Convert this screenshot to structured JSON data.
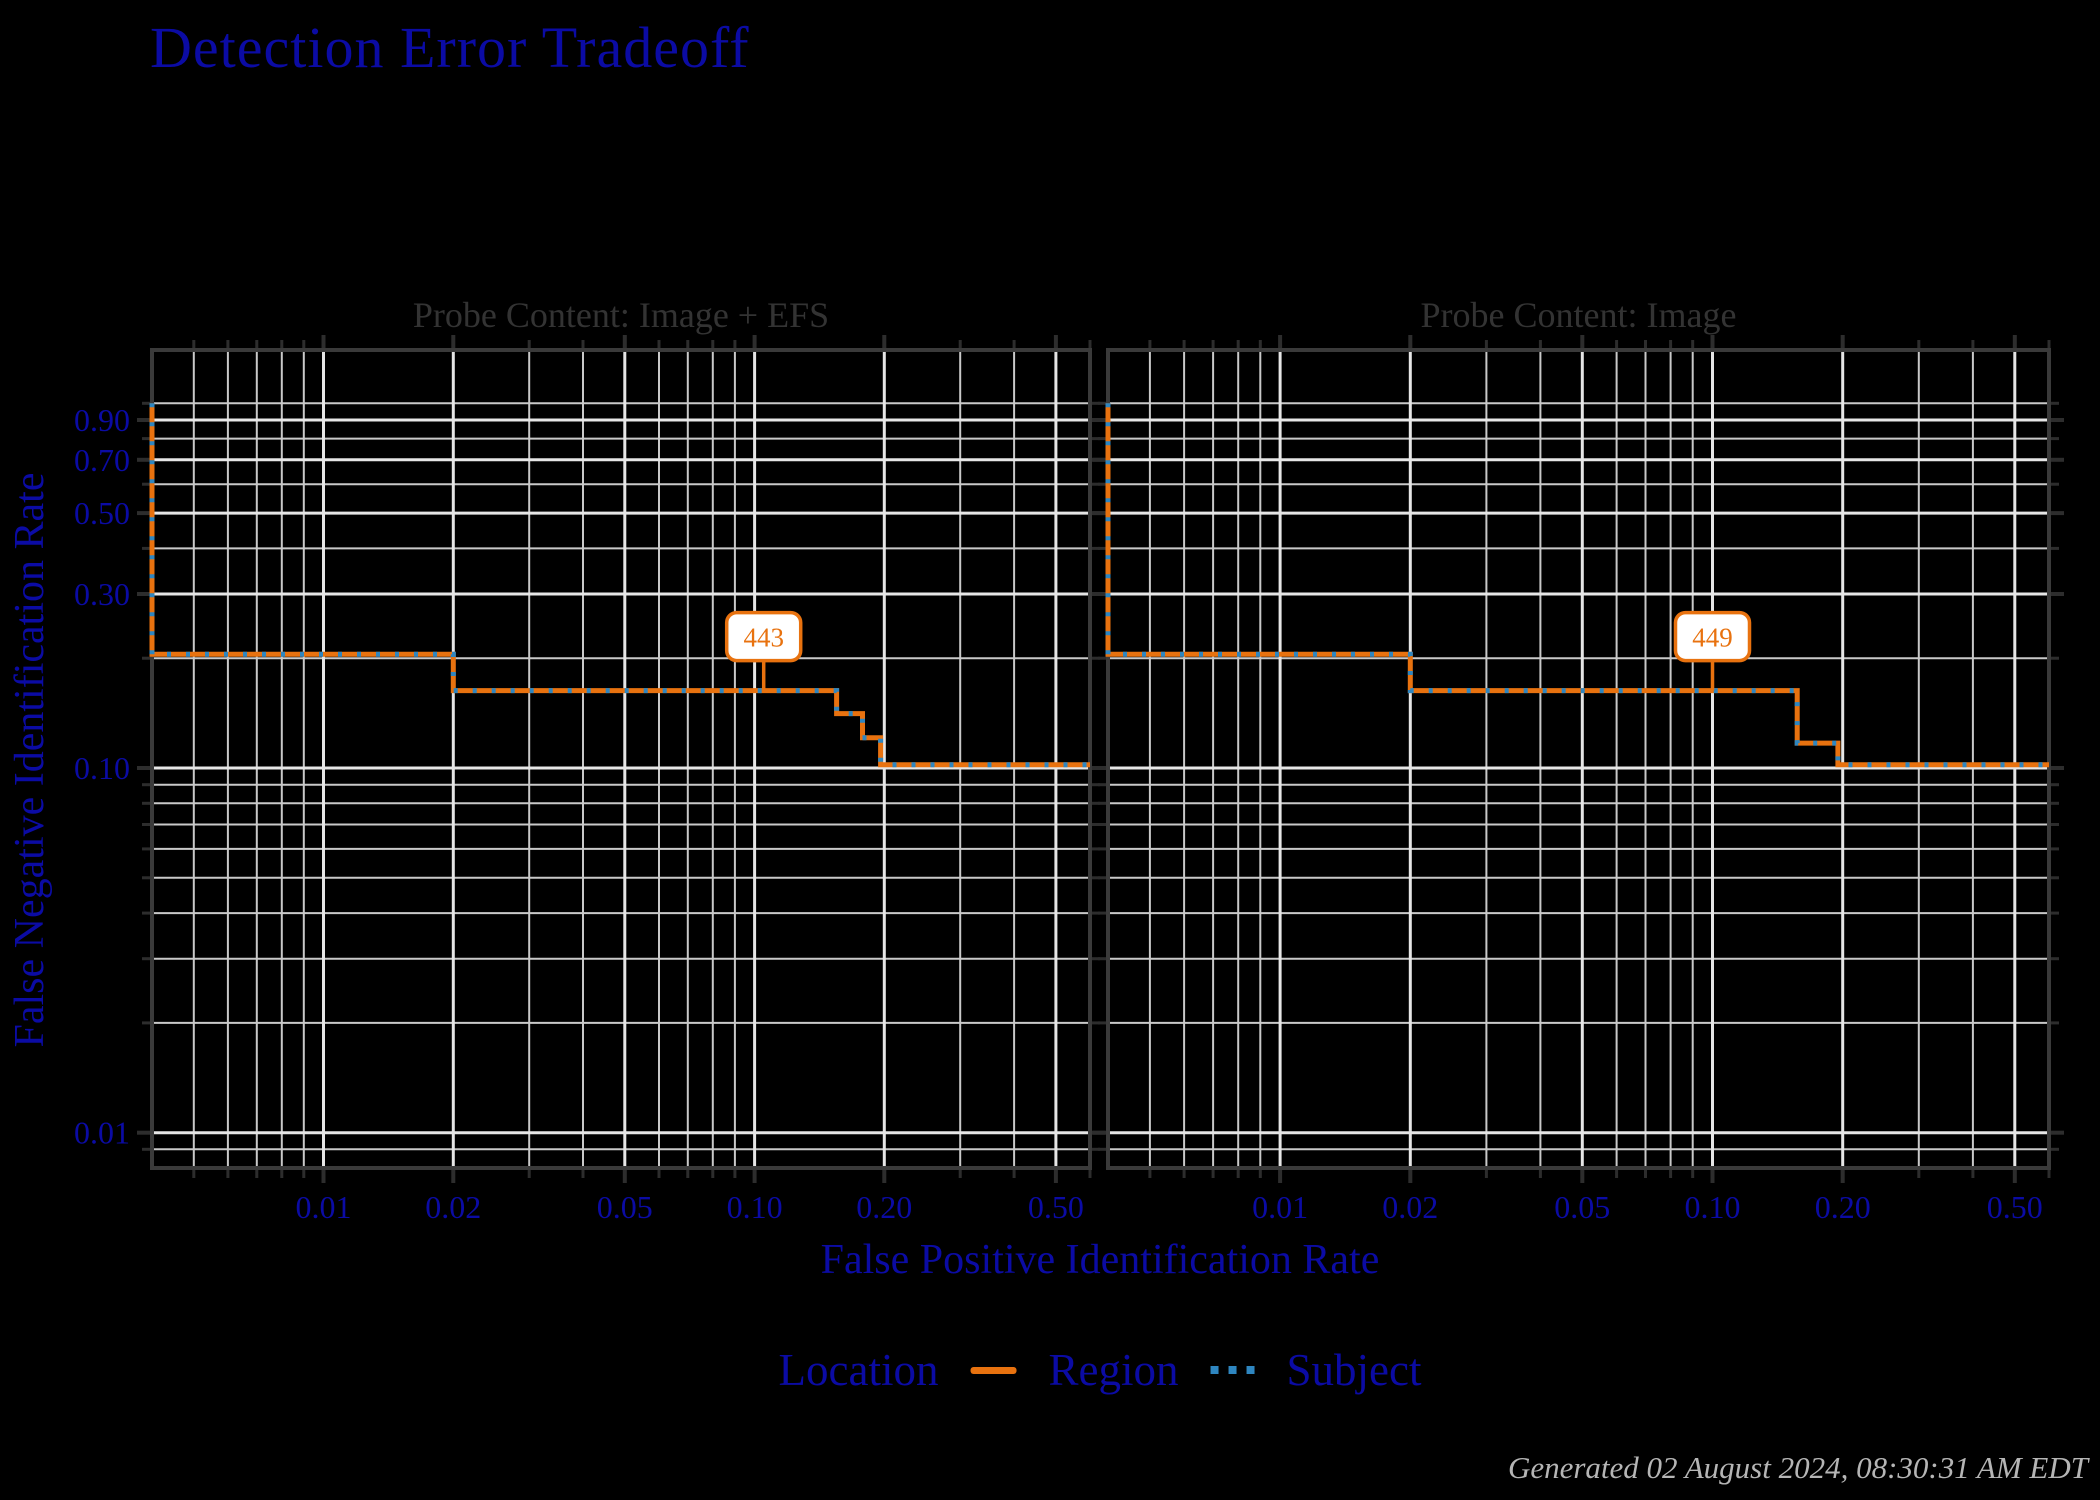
{
  "footer": {
    "text": "Generated 02 August 2024, 08:30:31 AM EDT"
  },
  "colors": {
    "background": "#000000",
    "title_blue": "#0b0ba4",
    "axis_text_blue": "#0b0ba4",
    "panel_title_gray": "#333333",
    "grid_major": "#e6e6e6",
    "grid_minor": "#c9c9c9",
    "spine": "#3a3a3a",
    "tick_mark": "#2d2d2d",
    "region_orange": "#e8720f",
    "subject_blue": "#2e86c0",
    "annotation_box_fill": "#ffffff",
    "footer_gray": "#b5b5b5"
  },
  "chart_data": {
    "type": "line",
    "title": "Detection Error Tradeoff",
    "xlabel": "False Positive Identification Rate",
    "ylabel": "False Negative Identification Rate",
    "xscale": "log",
    "yscale": "log",
    "xlim": [
      0.004,
      0.6
    ],
    "ylim": [
      0.008,
      1.4
    ],
    "grid": true,
    "x_ticks": [
      0.01,
      0.02,
      0.05,
      0.1,
      0.2,
      0.5
    ],
    "x_tick_labels": [
      "0.01",
      "0.02",
      "0.05",
      "0.10",
      "0.20",
      "0.50"
    ],
    "x_minor_ticks": [
      0.005,
      0.006,
      0.007,
      0.008,
      0.009,
      0.03,
      0.04,
      0.06,
      0.07,
      0.08,
      0.09,
      0.3,
      0.4,
      0.6
    ],
    "y_ticks": [
      0.9,
      0.7,
      0.5,
      0.3,
      0.1,
      0.01
    ],
    "y_tick_labels": [
      "0.90",
      "0.70",
      "0.50",
      "0.30",
      "0.10",
      "0.01"
    ],
    "y_minor_ticks": [
      1.0,
      0.8,
      0.6,
      0.4,
      0.2,
      0.09,
      0.08,
      0.07,
      0.06,
      0.05,
      0.04,
      0.03,
      0.02,
      0.009
    ],
    "legend": {
      "position": "bottom-center",
      "title": "Location",
      "items": [
        {
          "label": "Region",
          "style": "solid",
          "color": "#e8720f"
        },
        {
          "label": "Subject",
          "style": "dotted",
          "color": "#2e86c0"
        }
      ]
    },
    "panels": [
      {
        "title": "Probe Content: Image + EFS",
        "annotation": {
          "label": "443",
          "x": 0.105,
          "y": 0.163
        },
        "series": [
          {
            "name": "Region",
            "style": "solid",
            "color": "#e8720f",
            "points": [
              [
                0.004,
                1.0
              ],
              [
                0.004,
                0.205
              ],
              [
                0.02,
                0.205
              ],
              [
                0.02,
                0.163
              ],
              [
                0.155,
                0.163
              ],
              [
                0.155,
                0.141
              ],
              [
                0.178,
                0.141
              ],
              [
                0.178,
                0.121
              ],
              [
                0.196,
                0.121
              ],
              [
                0.196,
                0.102
              ],
              [
                0.6,
                0.102
              ]
            ]
          },
          {
            "name": "Subject",
            "style": "dotted",
            "color": "#2e86c0",
            "points": [
              [
                0.004,
                1.0
              ],
              [
                0.004,
                0.205
              ],
              [
                0.02,
                0.205
              ],
              [
                0.02,
                0.163
              ],
              [
                0.155,
                0.163
              ],
              [
                0.155,
                0.141
              ],
              [
                0.178,
                0.141
              ],
              [
                0.178,
                0.121
              ],
              [
                0.196,
                0.121
              ],
              [
                0.196,
                0.102
              ],
              [
                0.6,
                0.102
              ]
            ]
          }
        ]
      },
      {
        "title": "Probe Content: Image",
        "annotation": {
          "label": "449",
          "x": 0.1,
          "y": 0.163
        },
        "series": [
          {
            "name": "Region",
            "style": "solid",
            "color": "#e8720f",
            "points": [
              [
                0.004,
                1.0
              ],
              [
                0.004,
                0.205
              ],
              [
                0.02,
                0.205
              ],
              [
                0.02,
                0.163
              ],
              [
                0.157,
                0.163
              ],
              [
                0.157,
                0.117
              ],
              [
                0.195,
                0.117
              ],
              [
                0.195,
                0.102
              ],
              [
                0.6,
                0.102
              ]
            ]
          },
          {
            "name": "Subject",
            "style": "dotted",
            "color": "#2e86c0",
            "points": [
              [
                0.004,
                1.0
              ],
              [
                0.004,
                0.205
              ],
              [
                0.02,
                0.205
              ],
              [
                0.02,
                0.163
              ],
              [
                0.157,
                0.163
              ],
              [
                0.157,
                0.117
              ],
              [
                0.195,
                0.117
              ],
              [
                0.195,
                0.102
              ],
              [
                0.6,
                0.102
              ]
            ]
          }
        ]
      }
    ]
  }
}
